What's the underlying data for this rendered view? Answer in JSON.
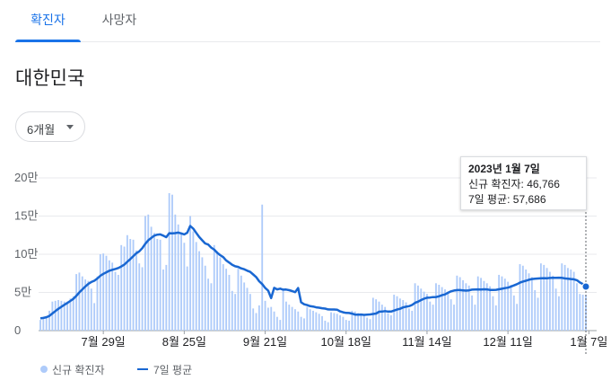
{
  "tabs": [
    {
      "label": "확진자",
      "active": true
    },
    {
      "label": "사망자",
      "active": false
    }
  ],
  "region": "대한민국",
  "period_select": {
    "value": "6개월"
  },
  "colors": {
    "accent": "#1a73e8",
    "bar": "#aecbfa",
    "line": "#1967d2"
  },
  "tooltip": {
    "date": "2023년 1월 7일",
    "new_cases": "신규 확진자: 46,766",
    "avg": "7일 평균: 57,686"
  },
  "legend": {
    "bars": "신규 확진자",
    "line": "7일 평균"
  },
  "chart_data": {
    "type": "bar",
    "ylim": [
      0,
      200000
    ],
    "yticks": [
      {
        "value": 0,
        "label": "0"
      },
      {
        "value": 50000,
        "label": "5만"
      },
      {
        "value": 100000,
        "label": "10만"
      },
      {
        "value": 150000,
        "label": "15만"
      },
      {
        "value": 200000,
        "label": "20만"
      }
    ],
    "xticks": [
      {
        "index": 21,
        "label": "7월 29일"
      },
      {
        "index": 48,
        "label": "8월 25일"
      },
      {
        "index": 75,
        "label": "9월 21일"
      },
      {
        "index": 102,
        "label": "10월 18일"
      },
      {
        "index": 129,
        "label": "11월 14일"
      },
      {
        "index": 156,
        "label": "12월 11일"
      },
      {
        "index": 183,
        "label": "1월 7일"
      }
    ],
    "series": [
      {
        "name": "신규 확진자",
        "type": "bar",
        "values": [
          14000,
          16000,
          19000,
          26000,
          38000,
          39000,
          40000,
          39000,
          38000,
          38000,
          42000,
          45000,
          74000,
          76000,
          71000,
          67000,
          65000,
          55000,
          36000,
          71000,
          100000,
          101000,
          98000,
          92000,
          89000,
          77000,
          73000,
          112000,
          110000,
          125000,
          120000,
          119000,
          105000,
          88000,
          83000,
          150000,
          152000,
          136000,
          128000,
          120000,
          119000,
          80000,
          86000,
          180000,
          178000,
          152000,
          139000,
          128000,
          115000,
          84000,
          150000,
          130000,
          116000,
          104000,
          96000,
          85000,
          68000,
          62000,
          112000,
          104000,
          96000,
          87000,
          81000,
          73000,
          52000,
          48000,
          81000,
          72000,
          63000,
          56000,
          48000,
          29000,
          23000,
          33000,
          165000,
          39000,
          30000,
          31000,
          25000,
          18000,
          14000,
          55000,
          38000,
          34000,
          31000,
          28000,
          25000,
          18000,
          16000,
          31000,
          28000,
          26000,
          24000,
          22000,
          19000,
          13000,
          11000,
          24000,
          23000,
          22000,
          20000,
          18000,
          14000,
          13000,
          26000,
          25000,
          23000,
          22000,
          21000,
          17000,
          15000,
          43000,
          41000,
          38000,
          34000,
          31000,
          23000,
          20000,
          47000,
          45000,
          42000,
          40000,
          37000,
          29000,
          26000,
          62000,
          59000,
          55000,
          51000,
          48000,
          38000,
          34000,
          62000,
          60000,
          57000,
          54000,
          51000,
          41000,
          34000,
          72000,
          70000,
          66000,
          62000,
          59000,
          46000,
          34000,
          71000,
          69000,
          65000,
          62000,
          58000,
          45000,
          33000,
          73000,
          71000,
          68000,
          64000,
          60000,
          46000,
          35000,
          87000,
          85000,
          80000,
          75000,
          70000,
          53000,
          43000,
          88000,
          86000,
          82000,
          77000,
          72000,
          55000,
          45000,
          88000,
          86000,
          82000,
          80000,
          77000,
          62000,
          48000,
          47000,
          46766
        ]
      },
      {
        "name": "7일 평균",
        "type": "line",
        "values": [
          16000,
          16600,
          17500,
          19200,
          22500,
          25500,
          28500,
          31200,
          33800,
          36200,
          38800,
          41500,
          45500,
          50000,
          54000,
          57800,
          61300,
          63700,
          65300,
          68200,
          71800,
          74300,
          76400,
          78300,
          79600,
          80700,
          82000,
          84000,
          86300,
          90100,
          93700,
          97500,
          101300,
          103800,
          108000,
          113700,
          118400,
          121300,
          124400,
          125600,
          126000,
          124300,
          122300,
          127500,
          127400,
          127700,
          128400,
          127300,
          126000,
          128200,
          137000,
          133500,
          128000,
          122500,
          118200,
          114100,
          112700,
          108700,
          106000,
          101900,
          98800,
          96200,
          91900,
          89000,
          86100,
          84200,
          83400,
          81500,
          80400,
          78500,
          76900,
          73500,
          70100,
          64600,
          61000,
          56000,
          52300,
          42600,
          56000,
          54000,
          54900,
          53600,
          53800,
          52900,
          51800,
          50300,
          55800,
          37100,
          34500,
          33400,
          32000,
          31500,
          30500,
          30000,
          29300,
          28800,
          27800,
          27600,
          27700,
          27400,
          25200,
          24000,
          23200,
          23000,
          22200,
          21000,
          20900,
          21100,
          20600,
          20900,
          21200,
          21800,
          22400,
          24700,
          25000,
          25500,
          24900,
          25000,
          26200,
          27500,
          28600,
          30300,
          31300,
          32000,
          33500,
          36300,
          37900,
          40000,
          41800,
          43000,
          43300,
          43900,
          44000,
          45000,
          46300,
          47400,
          49500,
          51400,
          52500,
          53000,
          53000,
          52700,
          52400,
          52700,
          53700,
          53900,
          54000,
          53900,
          54100,
          54000,
          53300,
          53300,
          53400,
          54100,
          54800,
          55600,
          56200,
          57600,
          59200,
          60800,
          62800,
          64200,
          65300,
          66600,
          67500,
          68000,
          68200,
          68500,
          68700,
          68500,
          68900,
          69000,
          69100,
          69300,
          69100,
          68400,
          68000,
          67500,
          67200,
          66000,
          63000,
          61000,
          57686
        ]
      }
    ]
  }
}
